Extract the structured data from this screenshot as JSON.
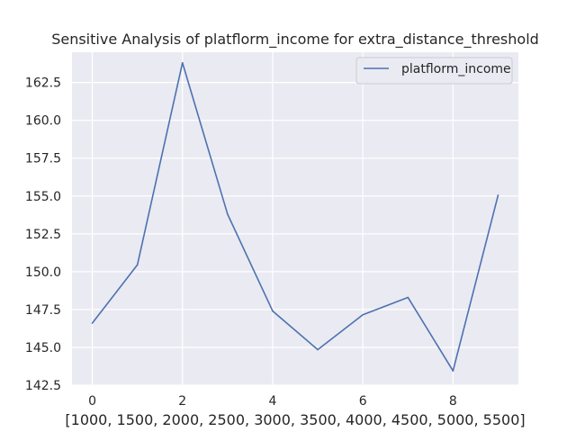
{
  "chart_data": {
    "type": "line",
    "title": "Sensitive Analysis of platflorm_income for extra_distance_threshold",
    "xlabel": "[1000, 1500, 2000, 2500, 3000, 3500, 4000, 4500, 5000, 5500]",
    "ylabel": "",
    "x": [
      0,
      1,
      2,
      3,
      4,
      5,
      6,
      7,
      8,
      9
    ],
    "x_ticks": [
      0,
      2,
      4,
      6,
      8
    ],
    "x_tick_labels": [
      "0",
      "2",
      "4",
      "6",
      "8"
    ],
    "y_ticks": [
      142.5,
      145.0,
      147.5,
      150.0,
      152.5,
      155.0,
      157.5,
      160.0,
      162.5
    ],
    "y_tick_labels": [
      "142.5",
      "145.0",
      "147.5",
      "150.0",
      "152.5",
      "155.0",
      "157.5",
      "160.0",
      "162.5"
    ],
    "xlim": [
      -0.45,
      9.45
    ],
    "ylim": [
      142.5,
      164.5
    ],
    "grid": true,
    "legend_position": "top-right",
    "series": [
      {
        "name": "platflorm_income",
        "color": "#4c72b0",
        "values": [
          146.6,
          150.45,
          163.8,
          153.8,
          147.4,
          144.85,
          147.15,
          148.3,
          143.45,
          155.05
        ]
      }
    ]
  }
}
